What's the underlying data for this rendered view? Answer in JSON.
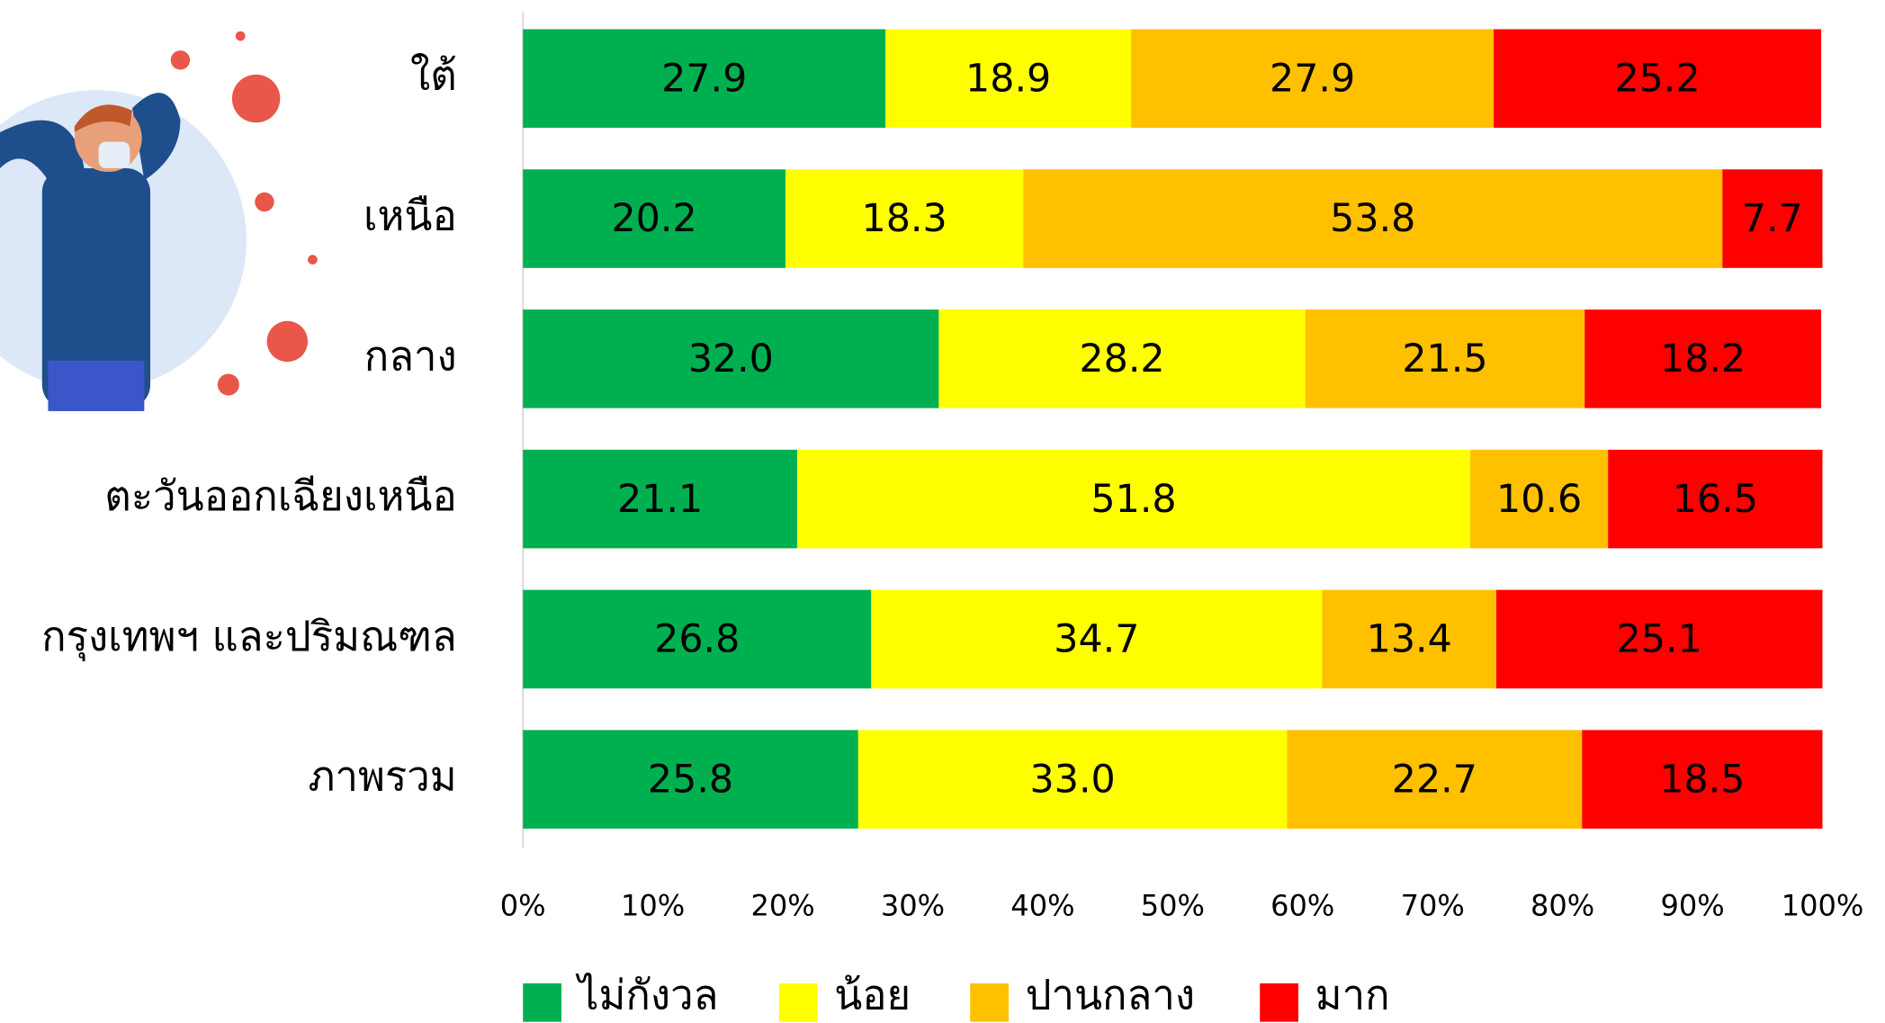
{
  "chart_data": {
    "type": "stacked-bar-horizontal",
    "categories": [
      "ใต้",
      "เหนือ",
      "กลาง",
      "ตะวันออกเฉียงเหนือ",
      "กรุงเทพฯ และปริมณฑล",
      "ภาพรวม"
    ],
    "series": [
      {
        "name": "ไม่กังวล",
        "color": "#00b050",
        "values": [
          27.9,
          20.2,
          32.0,
          21.1,
          26.8,
          25.8
        ],
        "value_labels": [
          "27.9",
          "20.2",
          "32.0",
          "21.1",
          "26.8",
          "25.8"
        ]
      },
      {
        "name": "น้อย",
        "color": "#ffff00",
        "values": [
          18.9,
          18.3,
          28.2,
          51.8,
          34.7,
          33.0
        ],
        "value_labels": [
          "18.9",
          "18.3",
          "28.2",
          "51.8",
          "34.7",
          "33.0"
        ]
      },
      {
        "name": "ปานกลาง",
        "color": "#ffc000",
        "values": [
          27.9,
          53.8,
          21.5,
          10.6,
          13.4,
          22.7
        ],
        "value_labels": [
          "27.9",
          "53.8",
          "21.5",
          "10.6",
          "13.4",
          "22.7"
        ]
      },
      {
        "name": "มาก",
        "color": "#ff0000",
        "values": [
          25.2,
          7.7,
          18.2,
          16.5,
          25.1,
          18.5
        ],
        "value_labels": [
          "25.2",
          "7.7",
          "18.2",
          "16.5",
          "25.1",
          "18.5"
        ]
      }
    ],
    "xlim": [
      0,
      100
    ],
    "xticks": [
      {
        "value": 0,
        "label": "0%"
      },
      {
        "value": 10,
        "label": "10%"
      },
      {
        "value": 20,
        "label": "20%"
      },
      {
        "value": 30,
        "label": "30%"
      },
      {
        "value": 40,
        "label": "40%"
      },
      {
        "value": 50,
        "label": "50%"
      },
      {
        "value": 60,
        "label": "60%"
      },
      {
        "value": 70,
        "label": "70%"
      },
      {
        "value": 80,
        "label": "80%"
      },
      {
        "value": 90,
        "label": "90%"
      },
      {
        "value": 100,
        "label": "100%"
      }
    ],
    "legend": "bottom"
  }
}
